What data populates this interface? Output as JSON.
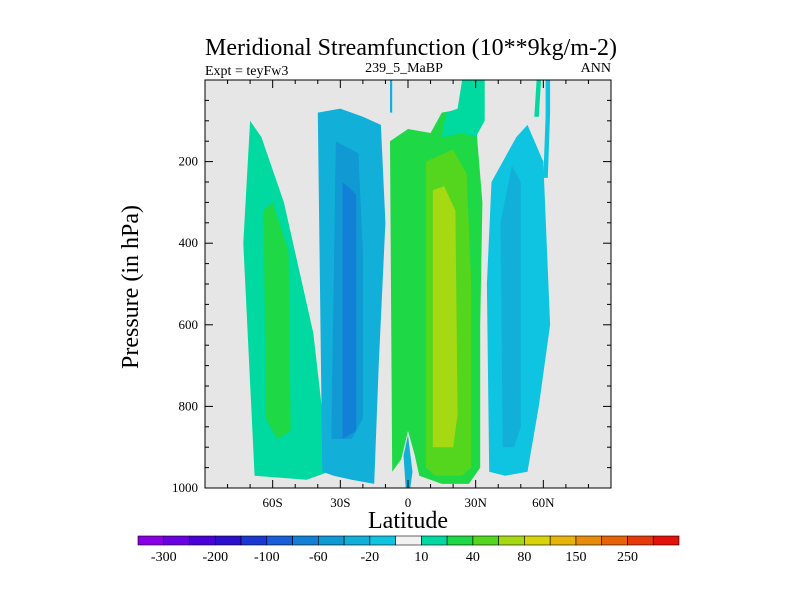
{
  "chart_data": {
    "type": "heatmap",
    "title": "Meridional Streamfunction (10**9kg/m-2)",
    "subtitle_left": "Expt = teyFw3",
    "subtitle_center": "239_5_MaBP",
    "subtitle_right": "ANN",
    "xlabel": "Latitude",
    "ylabel": "Pressure (in hPa)",
    "xlim": [
      -90,
      90
    ],
    "ylim": [
      1000,
      0
    ],
    "x_ticks": [
      {
        "value": -60,
        "label": "60S"
      },
      {
        "value": -30,
        "label": "30S"
      },
      {
        "value": 0,
        "label": "0"
      },
      {
        "value": 30,
        "label": "30N"
      },
      {
        "value": 60,
        "label": "60N"
      }
    ],
    "y_ticks": [
      {
        "value": 200,
        "label": "200"
      },
      {
        "value": 400,
        "label": "400"
      },
      {
        "value": 600,
        "label": "600"
      },
      {
        "value": 800,
        "label": "800"
      },
      {
        "value": 1000,
        "label": "1000"
      }
    ],
    "missing_color": "#e6e6e6",
    "colorbar": {
      "colors": [
        "#8a00e6",
        "#6a00e0",
        "#4b00d8",
        "#2b10cc",
        "#1b39d0",
        "#1a5fd9",
        "#1280d6",
        "#1199d4",
        "#12b0d8",
        "#0ec4e0",
        "#f2f2f2",
        "#00d9a0",
        "#1ed845",
        "#54d61e",
        "#a5d914",
        "#d7d40a",
        "#e6b40a",
        "#e68c0a",
        "#e6630a",
        "#e6390a",
        "#e6100a"
      ],
      "labels": [
        {
          "after": 0,
          "text": "-300"
        },
        {
          "after": 2,
          "text": "-200"
        },
        {
          "after": 4,
          "text": "-100"
        },
        {
          "after": 6,
          "text": "-60"
        },
        {
          "after": 8,
          "text": "-20"
        },
        {
          "after": 10,
          "text": "10"
        },
        {
          "after": 12,
          "text": "40"
        },
        {
          "after": 14,
          "text": "80"
        },
        {
          "after": 16,
          "text": "150"
        },
        {
          "after": 18,
          "text": "250"
        }
      ]
    },
    "regions": [
      {
        "name": "band-sh-midlat-outer",
        "color": "#00d9a0",
        "pts": [
          [
            -68,
            970
          ],
          [
            -73,
            400
          ],
          [
            -70,
            100
          ],
          [
            -65,
            140
          ],
          [
            -55,
            300
          ],
          [
            -42,
            620
          ],
          [
            -35,
            960
          ],
          [
            -45,
            980
          ]
        ]
      },
      {
        "name": "band-sh-midlat-inner",
        "color": "#1ed845",
        "pts": [
          [
            -63,
            830
          ],
          [
            -64,
            320
          ],
          [
            -60,
            300
          ],
          [
            -53,
            420
          ],
          [
            -52,
            860
          ],
          [
            -58,
            880
          ]
        ]
      },
      {
        "name": "band-sh-subtrop-outer",
        "color": "#12b0d8",
        "pts": [
          [
            -38,
            960
          ],
          [
            -40,
            80
          ],
          [
            -30,
            70
          ],
          [
            -20,
            90
          ],
          [
            -12,
            110
          ],
          [
            -10,
            350
          ],
          [
            -13,
            700
          ],
          [
            -15,
            990
          ],
          [
            -25,
            980
          ],
          [
            -33,
            970
          ]
        ]
      },
      {
        "name": "band-sh-subtrop-inner",
        "color": "#1199d4",
        "pts": [
          [
            -34,
            880
          ],
          [
            -32,
            150
          ],
          [
            -22,
            180
          ],
          [
            -20,
            420
          ],
          [
            -20,
            830
          ],
          [
            -25,
            880
          ]
        ]
      },
      {
        "name": "band-sh-subtrop-core",
        "color": "#1280d6",
        "pts": [
          [
            -29,
            880
          ],
          [
            -29,
            250
          ],
          [
            -23,
            280
          ],
          [
            -23,
            860
          ]
        ]
      },
      {
        "name": "band-tropics-green",
        "color": "#1ed845",
        "pts": [
          [
            -7,
            960
          ],
          [
            -8,
            150
          ],
          [
            0,
            120
          ],
          [
            10,
            130
          ],
          [
            15,
            80
          ],
          [
            25,
            70
          ],
          [
            30,
            100
          ],
          [
            33,
            300
          ],
          [
            32,
            600
          ],
          [
            32,
            950
          ],
          [
            27,
            990
          ],
          [
            15,
            990
          ],
          [
            5,
            970
          ],
          [
            3,
            920
          ],
          [
            0,
            860
          ],
          [
            -3,
            930
          ]
        ]
      },
      {
        "name": "band-tropics-inner",
        "color": "#54d61e",
        "pts": [
          [
            8,
            950
          ],
          [
            8,
            200
          ],
          [
            20,
            170
          ],
          [
            26,
            230
          ],
          [
            28,
            500
          ],
          [
            28,
            950
          ],
          [
            24,
            970
          ],
          [
            12,
            970
          ]
        ]
      },
      {
        "name": "band-tropics-core",
        "color": "#a5d914",
        "pts": [
          [
            11,
            900
          ],
          [
            11,
            270
          ],
          [
            16,
            260
          ],
          [
            21,
            320
          ],
          [
            22,
            820
          ],
          [
            20,
            900
          ],
          [
            14,
            900
          ]
        ]
      },
      {
        "name": "band-ne-outer",
        "color": "#00d9a0",
        "pts": [
          [
            15,
            140
          ],
          [
            17,
            80
          ],
          [
            22,
            70
          ],
          [
            24,
            0
          ],
          [
            34,
            0
          ],
          [
            34,
            100
          ],
          [
            30,
            140
          ],
          [
            24,
            130
          ]
        ]
      },
      {
        "name": "band-nh-stream-1",
        "color": "#00d9a0",
        "pts": [
          [
            57,
            0
          ],
          [
            59,
            0
          ],
          [
            58,
            90
          ],
          [
            56,
            90
          ]
        ]
      },
      {
        "name": "band-nh-stream-2",
        "color": "#0ec4e0",
        "pts": [
          [
            61,
            0
          ],
          [
            63,
            0
          ],
          [
            63,
            80
          ],
          [
            62,
            240
          ],
          [
            60,
            240
          ],
          [
            61,
            90
          ]
        ]
      },
      {
        "name": "band-nh-midlat-outer",
        "color": "#0ec4e0",
        "pts": [
          [
            36,
            960
          ],
          [
            35,
            500
          ],
          [
            37,
            250
          ],
          [
            48,
            140
          ],
          [
            53,
            110
          ],
          [
            60,
            200
          ],
          [
            63,
            600
          ],
          [
            58,
            800
          ],
          [
            53,
            960
          ],
          [
            43,
            970
          ]
        ]
      },
      {
        "name": "band-nh-midlat-inner",
        "color": "#12b0d8",
        "pts": [
          [
            42,
            900
          ],
          [
            41,
            350
          ],
          [
            46,
            210
          ],
          [
            50,
            250
          ],
          [
            50,
            850
          ],
          [
            47,
            900
          ]
        ]
      },
      {
        "name": "band-eq-blue-sliver",
        "color": "#12b0d8",
        "pts": [
          [
            -1,
            1000
          ],
          [
            -2,
            920
          ],
          [
            0,
            870
          ],
          [
            2,
            960
          ],
          [
            1,
            1000
          ]
        ]
      },
      {
        "name": "band-top-blue-sliver",
        "color": "#12b0d8",
        "pts": [
          [
            -8,
            0
          ],
          [
            -7,
            0
          ],
          [
            -7,
            80
          ],
          [
            -8,
            80
          ]
        ]
      }
    ]
  }
}
